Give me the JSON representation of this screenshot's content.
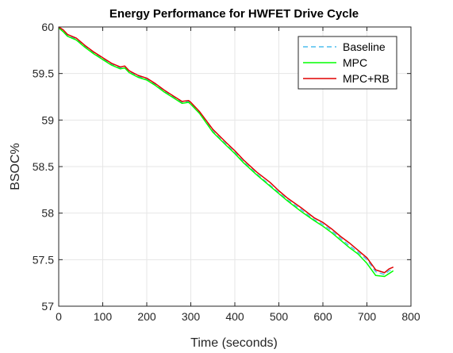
{
  "chart_data": {
    "type": "line",
    "title": "Energy Performance for HWFET Drive Cycle",
    "xlabel": "Time (seconds)",
    "ylabel": "BSOC%",
    "xlim": [
      0,
      800
    ],
    "ylim": [
      57,
      60
    ],
    "xticks": [
      0,
      100,
      200,
      300,
      400,
      500,
      600,
      700,
      800
    ],
    "yticks": [
      57,
      57.5,
      58,
      58.5,
      59,
      59.5,
      60
    ],
    "xtick_labels": [
      "0",
      "100",
      "200",
      "300",
      "400",
      "500",
      "600",
      "700",
      "800"
    ],
    "ytick_labels": [
      "57",
      "57.5",
      "58",
      "58.5",
      "59",
      "59.5",
      "60"
    ],
    "grid": true,
    "legend_position": "top-right",
    "series": [
      {
        "name": "Baseline",
        "color": "#4dbeee",
        "style": "dashed",
        "x": [
          0,
          10,
          20,
          40,
          60,
          80,
          100,
          120,
          140,
          150,
          160,
          180,
          200,
          220,
          240,
          260,
          280,
          295,
          300,
          320,
          350,
          380,
          400,
          420,
          450,
          480,
          500,
          520,
          550,
          580,
          600,
          620,
          640,
          660,
          680,
          700,
          720,
          740,
          750,
          760
        ],
        "y": [
          60.0,
          59.96,
          59.91,
          59.87,
          59.79,
          59.72,
          59.66,
          59.6,
          59.56,
          59.57,
          59.52,
          59.47,
          59.44,
          59.38,
          59.31,
          59.25,
          59.19,
          59.2,
          59.18,
          59.08,
          58.88,
          58.74,
          58.65,
          58.55,
          58.42,
          58.3,
          58.22,
          58.14,
          58.04,
          57.93,
          57.88,
          57.81,
          57.73,
          57.65,
          57.58,
          57.5,
          57.37,
          57.34,
          57.38,
          57.4
        ]
      },
      {
        "name": "MPC",
        "color": "#00ff00",
        "style": "solid",
        "x": [
          0,
          10,
          20,
          40,
          60,
          80,
          100,
          120,
          140,
          150,
          160,
          180,
          200,
          220,
          240,
          260,
          280,
          295,
          300,
          320,
          350,
          380,
          400,
          420,
          450,
          480,
          500,
          520,
          550,
          580,
          600,
          620,
          640,
          660,
          680,
          700,
          720,
          740,
          750,
          760
        ],
        "y": [
          59.99,
          59.95,
          59.9,
          59.86,
          59.78,
          59.71,
          59.65,
          59.59,
          59.55,
          59.56,
          59.51,
          59.46,
          59.43,
          59.37,
          59.3,
          59.24,
          59.18,
          59.19,
          59.17,
          59.07,
          58.87,
          58.73,
          58.64,
          58.54,
          58.41,
          58.29,
          58.21,
          58.13,
          58.02,
          57.92,
          57.86,
          57.79,
          57.71,
          57.63,
          57.56,
          57.46,
          57.33,
          57.32,
          57.35,
          57.38
        ]
      },
      {
        "name": "MPC+RB",
        "color": "#e00000",
        "style": "solid",
        "x": [
          0,
          10,
          20,
          40,
          60,
          80,
          100,
          120,
          140,
          150,
          160,
          180,
          200,
          220,
          240,
          260,
          280,
          295,
          300,
          320,
          350,
          380,
          400,
          420,
          450,
          480,
          500,
          520,
          550,
          580,
          600,
          620,
          640,
          660,
          680,
          700,
          720,
          740,
          750,
          760
        ],
        "y": [
          60.0,
          59.97,
          59.92,
          59.88,
          59.8,
          59.73,
          59.67,
          59.61,
          59.57,
          59.58,
          59.53,
          59.48,
          59.45,
          59.39,
          59.32,
          59.26,
          59.2,
          59.21,
          59.19,
          59.09,
          58.9,
          58.76,
          58.67,
          58.57,
          58.44,
          58.33,
          58.24,
          58.16,
          58.06,
          57.95,
          57.9,
          57.83,
          57.75,
          57.68,
          57.6,
          57.52,
          57.39,
          57.36,
          57.4,
          57.42
        ]
      }
    ]
  }
}
